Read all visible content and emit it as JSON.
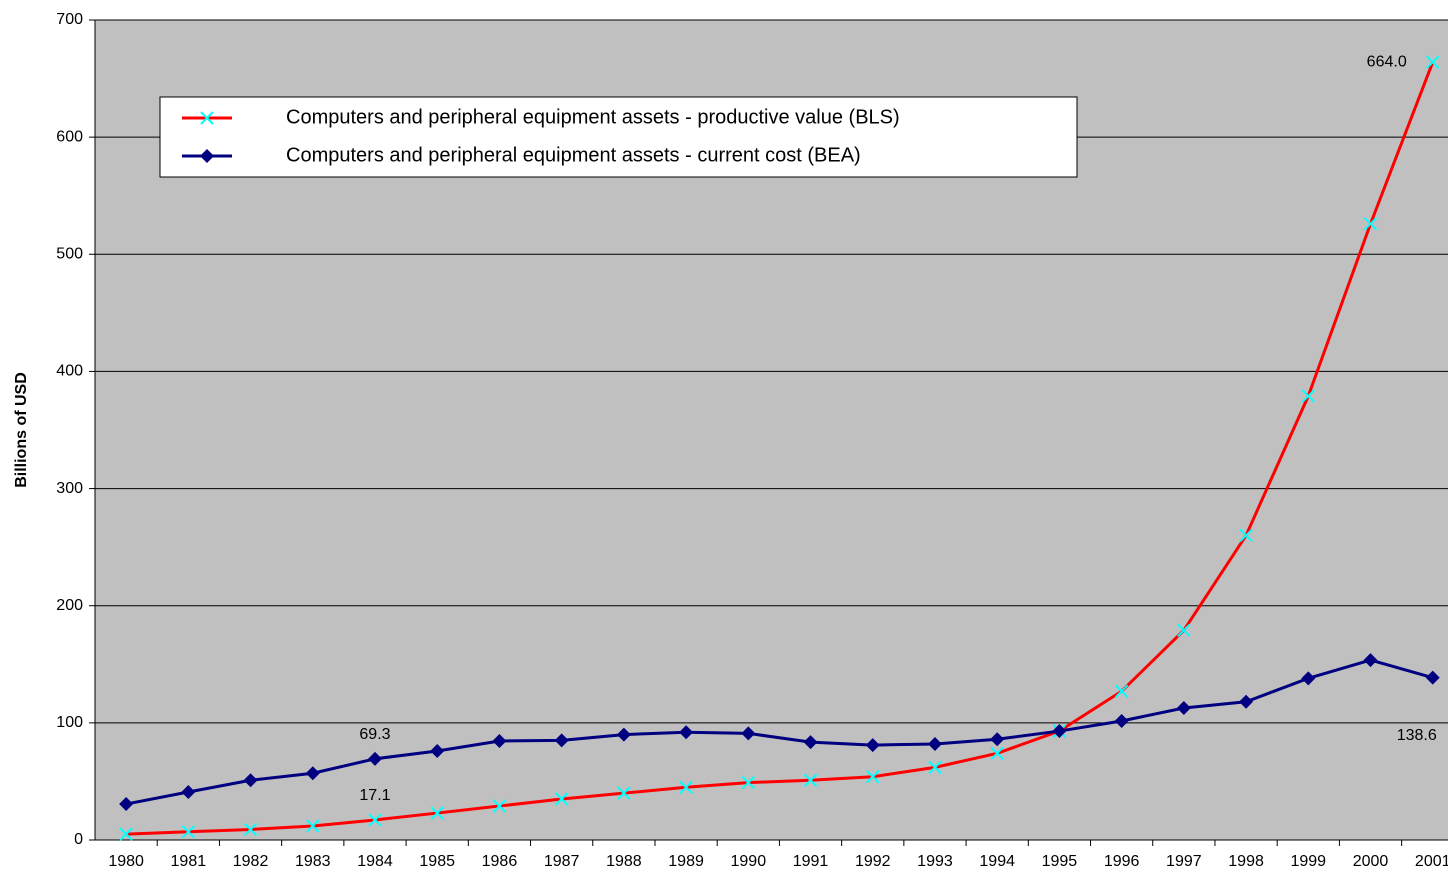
{
  "chart_data": {
    "type": "line",
    "y_label": "Billions of USD",
    "categories": [
      "1980",
      "1981",
      "1982",
      "1983",
      "1984",
      "1985",
      "1986",
      "1987",
      "1988",
      "1989",
      "1990",
      "1991",
      "1992",
      "1993",
      "1994",
      "1995",
      "1996",
      "1997",
      "1998",
      "1999",
      "2000",
      "2001"
    ],
    "series": [
      {
        "name": "Computers and peripheral equipment assets - productive value (BLS)",
        "color": "#ff0000",
        "marker": "x",
        "marker_color": "#00ffff",
        "values": [
          5,
          7,
          9,
          12,
          17.1,
          23,
          29,
          35,
          40,
          45,
          49,
          51,
          54,
          62,
          74,
          93,
          127,
          179,
          260,
          379,
          526,
          664.0
        ],
        "value_labels": [
          null,
          null,
          null,
          null,
          "17.1",
          null,
          null,
          null,
          null,
          null,
          null,
          null,
          null,
          null,
          null,
          null,
          null,
          null,
          null,
          null,
          null,
          "664.0"
        ]
      },
      {
        "name": "Computers and peripheral equipment assets - current cost (BEA)",
        "color": "#000080",
        "marker": "diamond",
        "marker_color": "#000080",
        "values": [
          30.7,
          41,
          51,
          57,
          69.3,
          76,
          84.5,
          85,
          90,
          92,
          91,
          83.6,
          81,
          82,
          86,
          93,
          101.6,
          112.7,
          118,
          138,
          153.6,
          138.6
        ],
        "value_labels": [
          null,
          null,
          null,
          null,
          "69.3",
          null,
          null,
          null,
          null,
          null,
          null,
          null,
          null,
          null,
          null,
          null,
          null,
          null,
          null,
          null,
          null,
          "138.6"
        ]
      }
    ],
    "ylim": [
      0,
      700
    ],
    "yticks": [
      0,
      100,
      200,
      300,
      400,
      500,
      600,
      700
    ],
    "grid": true,
    "legend": "upper left"
  }
}
